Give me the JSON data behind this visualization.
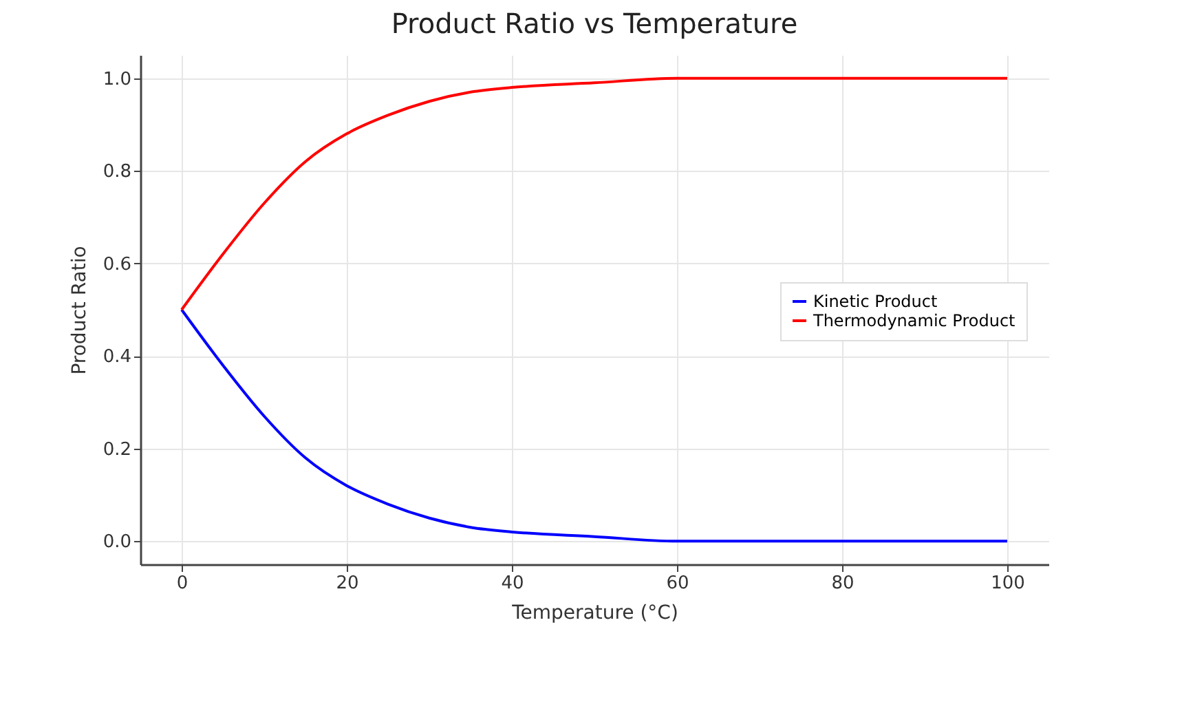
{
  "chart_data": {
    "type": "line",
    "title": "Product Ratio vs Temperature",
    "xlabel": "Temperature (°C)",
    "ylabel": "Product Ratio",
    "x": [
      0,
      5,
      10,
      15,
      20,
      25,
      30,
      35,
      40,
      50,
      60,
      70,
      80,
      100
    ],
    "series": [
      {
        "name": "Kinetic Product",
        "color": "#0000ff",
        "values": [
          0.5,
          0.38,
          0.27,
          0.18,
          0.12,
          0.08,
          0.05,
          0.03,
          0.02,
          0.01,
          0.0,
          0.0,
          0.0,
          0.0
        ]
      },
      {
        "name": "Thermodynamic Product",
        "color": "#ff0000",
        "values": [
          0.5,
          0.62,
          0.73,
          0.82,
          0.88,
          0.92,
          0.95,
          0.97,
          0.98,
          0.99,
          1.0,
          1.0,
          1.0,
          1.0
        ]
      }
    ],
    "xlim": [
      -5,
      105
    ],
    "xticks": [
      0,
      20,
      40,
      60,
      80,
      100
    ],
    "ylim": [
      -0.05,
      1.05
    ],
    "yticks": [
      {
        "value": 0,
        "label": "0.0"
      },
      0.2,
      0.4,
      0.6,
      0.8,
      {
        "value": 1,
        "label": "1.0"
      }
    ],
    "grid": true,
    "legend": "right",
    "marker": "none",
    "line_style": "solid"
  }
}
